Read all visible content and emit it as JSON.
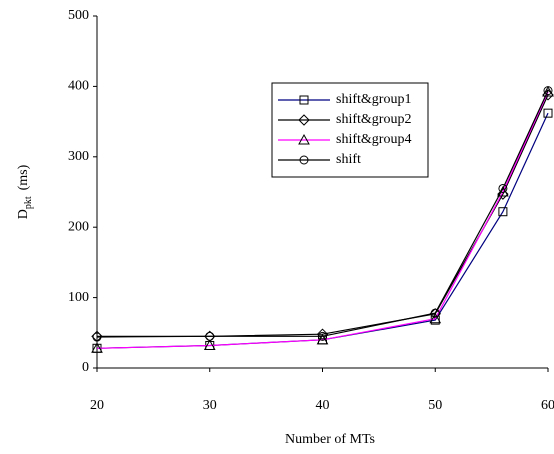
{
  "chart_data": {
    "type": "line",
    "xlabel": "Number of MTs",
    "ylabel": {
      "main": "D",
      "sub": "pkt",
      "unit": "(ms)"
    },
    "x": [
      20,
      30,
      40,
      50,
      56,
      60
    ],
    "xlim": [
      20,
      60
    ],
    "xticks": [
      20,
      30,
      40,
      50,
      60
    ],
    "ylim": [
      0,
      500
    ],
    "yticks": [
      0,
      100,
      200,
      300,
      400,
      500
    ],
    "grid": false,
    "legend": "upper-right",
    "series": [
      {
        "name": "shift&group1",
        "color": "#000080",
        "marker": "square",
        "values": [
          28,
          32,
          40,
          68,
          222,
          362
        ]
      },
      {
        "name": "shift&group2",
        "color": "#000000",
        "marker": "diamond",
        "values": [
          45,
          45,
          48,
          77,
          247,
          388
        ]
      },
      {
        "name": "shift&group4",
        "color": "#ff00ff",
        "marker": "triangle",
        "values": [
          28,
          32,
          40,
          70,
          250,
          392
        ]
      },
      {
        "name": "shift",
        "color": "#000000",
        "marker": "circle",
        "values": [
          44,
          45,
          45,
          78,
          255,
          394
        ]
      }
    ]
  }
}
